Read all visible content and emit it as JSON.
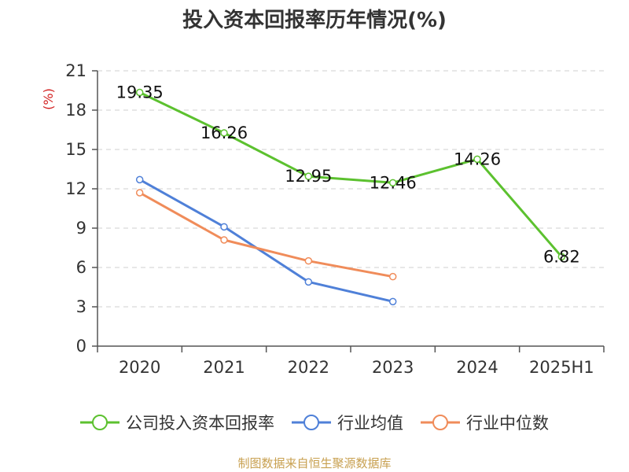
{
  "chart_data": {
    "type": "line",
    "title": "投入资本回报率历年情况(%)",
    "ylabel": "(%)",
    "xlabel": "",
    "categories": [
      "2020",
      "2021",
      "2022",
      "2023",
      "2024",
      "2025H1"
    ],
    "ylim": [
      0,
      21
    ],
    "yticks": [
      0,
      3,
      6,
      9,
      12,
      15,
      18,
      21
    ],
    "grid": true,
    "legend_position": "bottom",
    "series": [
      {
        "name": "公司投入资本回报率",
        "color": "#5cc12f",
        "values": [
          19.35,
          16.26,
          12.95,
          12.46,
          14.26,
          6.82
        ],
        "data_labels": [
          "19.35",
          "16.26",
          "12.95",
          "12.46",
          "14.26",
          "6.82"
        ]
      },
      {
        "name": "行业均值",
        "color": "#4f80d8",
        "values": [
          12.7,
          9.1,
          4.9,
          3.4,
          null,
          null
        ]
      },
      {
        "name": "行业中位数",
        "color": "#f08c5a",
        "values": [
          11.7,
          8.1,
          6.5,
          5.3,
          null,
          null
        ]
      }
    ]
  },
  "footer": {
    "source": "制图数据来自恒生聚源数据库"
  }
}
